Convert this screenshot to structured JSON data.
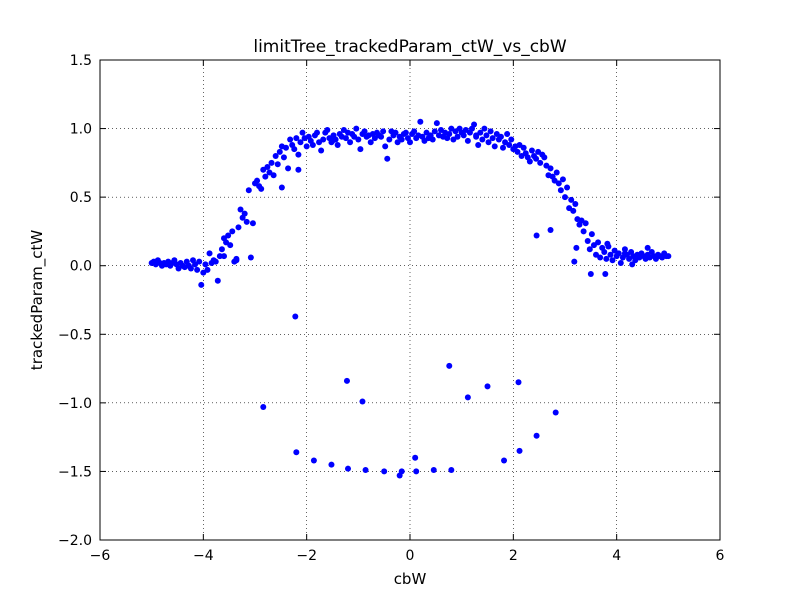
{
  "chart_data": {
    "type": "scatter",
    "title": "limitTree_trackedParam_ctW_vs_cbW",
    "xlabel": "cbW",
    "ylabel": "trackedParam_ctW",
    "xlim": [
      -6,
      6
    ],
    "ylim": [
      -2.0,
      1.5
    ],
    "xticks": [
      -6,
      -4,
      -2,
      0,
      2,
      4,
      6
    ],
    "xtick_labels": [
      "−6",
      "−4",
      "−2",
      "0",
      "2",
      "4",
      "6"
    ],
    "yticks": [
      -2.0,
      -1.5,
      -1.0,
      -0.5,
      0.0,
      0.5,
      1.0,
      1.5
    ],
    "ytick_labels": [
      "−2.0",
      "−1.5",
      "−1.0",
      "−0.5",
      "0.0",
      "0.5",
      "1.0",
      "1.5"
    ],
    "grid": true,
    "marker_color": "#0000ff",
    "points": [
      [
        -5.0,
        0.02
      ],
      [
        -4.96,
        0.03
      ],
      [
        -4.92,
        0.01
      ],
      [
        -4.88,
        0.04
      ],
      [
        -4.84,
        0.02
      ],
      [
        -4.8,
        0.0
      ],
      [
        -4.76,
        0.02
      ],
      [
        -4.72,
        0.01
      ],
      [
        -4.68,
        0.03
      ],
      [
        -4.64,
        0.0
      ],
      [
        -4.6,
        0.02
      ],
      [
        -4.56,
        0.04
      ],
      [
        -4.52,
        0.01
      ],
      [
        -4.48,
        -0.02
      ],
      [
        -4.44,
        0.02
      ],
      [
        -4.4,
        0.0
      ],
      [
        -4.36,
        -0.01
      ],
      [
        -4.32,
        0.03
      ],
      [
        -4.28,
        0.0
      ],
      [
        -4.24,
        -0.02
      ],
      [
        -4.2,
        0.04
      ],
      [
        -4.16,
        0.01
      ],
      [
        -4.12,
        -0.03
      ],
      [
        -4.08,
        0.03
      ],
      [
        -4.04,
        -0.14
      ],
      [
        -4.0,
        -0.05
      ],
      [
        -3.96,
        0.01
      ],
      [
        -3.92,
        -0.03
      ],
      [
        -3.88,
        0.09
      ],
      [
        -3.84,
        0.02
      ],
      [
        -3.8,
        0.04
      ],
      [
        -3.76,
        0.03
      ],
      [
        -3.72,
        -0.11
      ],
      [
        -3.68,
        0.07
      ],
      [
        -3.64,
        0.12
      ],
      [
        -3.6,
        0.2
      ],
      [
        -3.56,
        0.17
      ],
      [
        -3.52,
        0.22
      ],
      [
        -3.48,
        0.15
      ],
      [
        -3.44,
        0.25
      ],
      [
        -3.4,
        0.03
      ],
      [
        -3.36,
        0.05
      ],
      [
        -3.32,
        0.28
      ],
      [
        -3.28,
        0.41
      ],
      [
        -3.24,
        0.35
      ],
      [
        -3.2,
        0.38
      ],
      [
        -3.16,
        0.32
      ],
      [
        -3.12,
        0.55
      ],
      [
        -3.08,
        0.06
      ],
      [
        -3.04,
        0.31
      ],
      [
        -3.0,
        0.6
      ],
      [
        -2.96,
        0.62
      ],
      [
        -2.92,
        0.58
      ],
      [
        -2.88,
        0.56
      ],
      [
        -2.84,
        0.7
      ],
      [
        -2.8,
        0.65
      ],
      [
        -2.76,
        0.72
      ],
      [
        -2.72,
        0.68
      ],
      [
        -2.68,
        0.75
      ],
      [
        -2.64,
        0.66
      ],
      [
        -2.6,
        0.8
      ],
      [
        -2.56,
        0.74
      ],
      [
        -2.52,
        0.83
      ],
      [
        -2.48,
        0.87
      ],
      [
        -2.44,
        0.79
      ],
      [
        -2.4,
        0.86
      ],
      [
        -2.36,
        0.71
      ],
      [
        -2.32,
        0.92
      ],
      [
        -2.28,
        0.88
      ],
      [
        -2.24,
        0.85
      ],
      [
        -2.2,
        0.93
      ],
      [
        -2.16,
        0.81
      ],
      [
        -2.12,
        0.9
      ],
      [
        -2.08,
        0.97
      ],
      [
        -2.04,
        0.93
      ],
      [
        -2.0,
        0.87
      ],
      [
        -1.96,
        0.94
      ],
      [
        -1.92,
        0.91
      ],
      [
        -1.88,
        0.88
      ],
      [
        -1.84,
        0.95
      ],
      [
        -1.8,
        0.97
      ],
      [
        -1.76,
        0.9
      ],
      [
        -1.72,
        0.84
      ],
      [
        -1.68,
        0.92
      ],
      [
        -1.64,
        0.97
      ],
      [
        -1.6,
        0.99
      ],
      [
        -1.56,
        0.93
      ],
      [
        -1.52,
        0.9
      ],
      [
        -1.48,
        0.95
      ],
      [
        -1.44,
        0.92
      ],
      [
        -1.4,
        0.88
      ],
      [
        -1.36,
        0.96
      ],
      [
        -1.32,
        0.94
      ],
      [
        -1.28,
        0.99
      ],
      [
        -1.24,
        0.93
      ],
      [
        -1.2,
        0.97
      ],
      [
        -1.16,
        0.9
      ],
      [
        -1.12,
        0.96
      ],
      [
        -1.08,
        0.94
      ],
      [
        -1.04,
        1.0
      ],
      [
        -1.0,
        0.92
      ],
      [
        -0.96,
        0.85
      ],
      [
        -0.92,
        0.96
      ],
      [
        -0.88,
        0.98
      ],
      [
        -0.84,
        0.94
      ],
      [
        -0.8,
        0.95
      ],
      [
        -0.76,
        0.9
      ],
      [
        -0.72,
        0.96
      ],
      [
        -0.68,
        0.93
      ],
      [
        -0.64,
        0.97
      ],
      [
        -0.6,
        0.95
      ],
      [
        -0.56,
        0.94
      ],
      [
        -0.52,
        0.98
      ],
      [
        -0.48,
        0.87
      ],
      [
        -0.44,
        0.78
      ],
      [
        -0.4,
        0.92
      ],
      [
        -0.36,
        0.98
      ],
      [
        -0.32,
        0.95
      ],
      [
        -0.28,
        0.97
      ],
      [
        -0.24,
        0.9
      ],
      [
        -0.2,
        0.94
      ],
      [
        -0.16,
        0.92
      ],
      [
        -0.12,
        0.96
      ],
      [
        -0.08,
        0.97
      ],
      [
        -0.04,
        0.93
      ],
      [
        0.0,
        0.9
      ],
      [
        0.04,
        0.96
      ],
      [
        0.08,
        0.98
      ],
      [
        0.12,
        0.93
      ],
      [
        0.16,
        0.95
      ],
      [
        0.2,
        1.05
      ],
      [
        0.24,
        0.94
      ],
      [
        0.28,
        0.91
      ],
      [
        0.32,
        0.97
      ],
      [
        0.36,
        0.93
      ],
      [
        0.4,
        0.95
      ],
      [
        0.44,
        0.92
      ],
      [
        0.48,
        0.98
      ],
      [
        0.52,
        1.04
      ],
      [
        0.56,
        0.95
      ],
      [
        0.6,
        0.99
      ],
      [
        0.64,
        0.94
      ],
      [
        0.68,
        0.97
      ],
      [
        0.72,
        0.93
      ],
      [
        0.76,
        0.96
      ],
      [
        0.8,
        1.0
      ],
      [
        0.84,
        0.92
      ],
      [
        0.88,
        0.98
      ],
      [
        0.92,
        0.94
      ],
      [
        0.96,
        1.0
      ],
      [
        1.0,
        0.97
      ],
      [
        1.04,
        0.95
      ],
      [
        1.08,
        0.99
      ],
      [
        1.12,
        0.91
      ],
      [
        1.16,
        0.97
      ],
      [
        1.2,
        1.0
      ],
      [
        1.24,
        1.03
      ],
      [
        1.28,
        0.95
      ],
      [
        1.32,
        0.88
      ],
      [
        1.36,
        0.97
      ],
      [
        1.4,
        0.92
      ],
      [
        1.44,
        1.0
      ],
      [
        1.48,
        0.95
      ],
      [
        1.52,
        0.9
      ],
      [
        1.56,
        0.98
      ],
      [
        1.6,
        0.93
      ],
      [
        1.64,
        0.87
      ],
      [
        1.68,
        0.96
      ],
      [
        1.72,
        0.92
      ],
      [
        1.76,
        0.94
      ],
      [
        1.8,
        0.86
      ],
      [
        1.84,
        0.9
      ],
      [
        1.88,
        0.96
      ],
      [
        1.92,
        0.88
      ],
      [
        1.96,
        0.92
      ],
      [
        2.0,
        0.85
      ],
      [
        2.04,
        0.87
      ],
      [
        2.08,
        0.83
      ],
      [
        2.12,
        0.88
      ],
      [
        2.16,
        0.8
      ],
      [
        2.2,
        0.86
      ],
      [
        2.24,
        0.82
      ],
      [
        2.28,
        0.79
      ],
      [
        2.32,
        0.76
      ],
      [
        2.36,
        0.84
      ],
      [
        2.4,
        0.8
      ],
      [
        2.44,
        0.78
      ],
      [
        2.48,
        0.83
      ],
      [
        2.52,
        0.75
      ],
      [
        2.56,
        0.81
      ],
      [
        2.6,
        0.79
      ],
      [
        2.64,
        0.73
      ],
      [
        2.68,
        0.66
      ],
      [
        2.72,
        0.71
      ],
      [
        2.76,
        0.65
      ],
      [
        2.8,
        0.62
      ],
      [
        2.84,
        0.68
      ],
      [
        2.88,
        0.6
      ],
      [
        2.92,
        0.55
      ],
      [
        2.96,
        0.63
      ],
      [
        3.0,
        0.5
      ],
      [
        3.04,
        0.57
      ],
      [
        3.08,
        0.42
      ],
      [
        3.12,
        0.48
      ],
      [
        3.16,
        0.4
      ],
      [
        3.2,
        0.45
      ],
      [
        3.24,
        0.34
      ],
      [
        3.28,
        0.3
      ],
      [
        3.32,
        0.33
      ],
      [
        3.36,
        0.25
      ],
      [
        3.4,
        0.31
      ],
      [
        3.44,
        0.18
      ],
      [
        3.48,
        0.12
      ],
      [
        3.52,
        0.23
      ],
      [
        3.56,
        0.15
      ],
      [
        3.6,
        0.08
      ],
      [
        3.64,
        0.17
      ],
      [
        3.68,
        0.06
      ],
      [
        3.72,
        0.13
      ],
      [
        3.76,
        0.1
      ],
      [
        3.8,
        0.05
      ],
      [
        3.84,
        0.14
      ],
      [
        3.88,
        0.08
      ],
      [
        3.92,
        0.04
      ],
      [
        3.96,
        0.11
      ],
      [
        4.0,
        0.07
      ],
      [
        4.04,
        0.09
      ],
      [
        4.08,
        0.02
      ],
      [
        4.12,
        0.06
      ],
      [
        4.16,
        0.12
      ],
      [
        4.2,
        0.08
      ],
      [
        4.24,
        0.05
      ],
      [
        4.28,
        0.1
      ],
      [
        4.32,
        0.07
      ],
      [
        4.36,
        0.04
      ],
      [
        4.4,
        0.08
      ],
      [
        4.44,
        0.06
      ],
      [
        4.48,
        0.09
      ],
      [
        4.52,
        0.07
      ],
      [
        4.56,
        0.05
      ],
      [
        4.6,
        0.08
      ],
      [
        4.64,
        0.06
      ],
      [
        4.68,
        0.1
      ],
      [
        4.72,
        0.07
      ],
      [
        4.76,
        0.05
      ],
      [
        4.8,
        0.08
      ],
      [
        4.84,
        0.07
      ],
      [
        4.88,
        0.06
      ],
      [
        4.92,
        0.09
      ],
      [
        4.96,
        0.07
      ],
      [
        5.0,
        0.07
      ],
      [
        -2.48,
        0.57
      ],
      [
        -2.16,
        0.7
      ],
      [
        -3.6,
        0.07
      ],
      [
        -3.36,
        0.04
      ],
      [
        -1.5,
        0.91
      ],
      [
        1.28,
        0.94
      ],
      [
        2.45,
        0.22
      ],
      [
        2.72,
        0.26
      ],
      [
        3.18,
        0.03
      ],
      [
        3.22,
        0.13
      ],
      [
        3.5,
        -0.06
      ],
      [
        3.78,
        -0.06
      ],
      [
        3.82,
        0.16
      ],
      [
        4.16,
        0.09
      ],
      [
        4.3,
        0.01
      ],
      [
        4.6,
        0.13
      ],
      [
        -2.22,
        -0.37
      ],
      [
        -2.84,
        -1.03
      ],
      [
        -1.22,
        -0.84
      ],
      [
        -0.92,
        -0.99
      ],
      [
        0.76,
        -0.73
      ],
      [
        1.12,
        -0.96
      ],
      [
        1.5,
        -0.88
      ],
      [
        2.1,
        -0.85
      ],
      [
        2.82,
        -1.07
      ],
      [
        2.45,
        -1.24
      ],
      [
        -2.2,
        -1.36
      ],
      [
        -1.86,
        -1.42
      ],
      [
        -1.52,
        -1.45
      ],
      [
        -1.2,
        -1.48
      ],
      [
        -0.86,
        -1.49
      ],
      [
        -0.5,
        -1.5
      ],
      [
        -0.2,
        -1.53
      ],
      [
        -0.16,
        -1.5
      ],
      [
        0.1,
        -1.4
      ],
      [
        0.12,
        -1.5
      ],
      [
        0.46,
        -1.49
      ],
      [
        0.8,
        -1.49
      ],
      [
        1.82,
        -1.42
      ],
      [
        2.12,
        -1.35
      ]
    ]
  }
}
